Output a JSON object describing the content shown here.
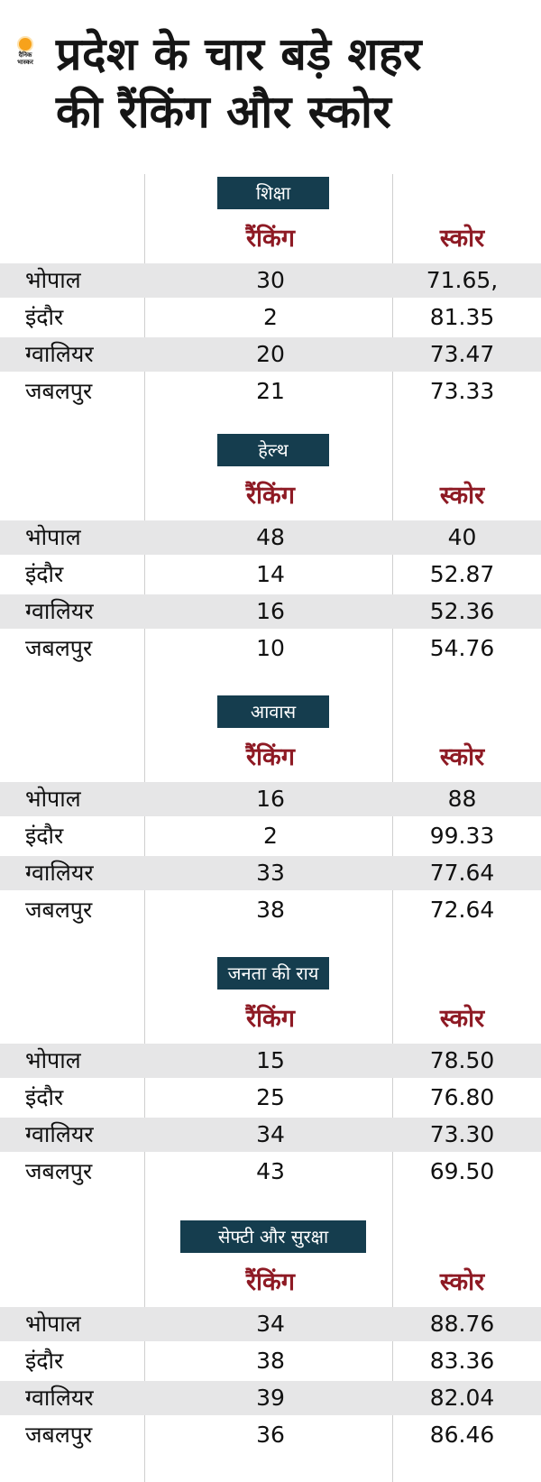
{
  "brand": {
    "logo_text_line1": "दैनिक",
    "logo_text_line2": "भास्कर"
  },
  "title": {
    "line1": "प्रदेश के चार बड़े शहर",
    "line2": "की रैंकिंग और स्कोर"
  },
  "columns": {
    "rank": "रैंकिंग",
    "score": "स्कोर"
  },
  "sections": [
    {
      "label": "शिक्षा",
      "rows": [
        {
          "city": "भोपाल",
          "rank": "30",
          "score": "71.65,"
        },
        {
          "city": "इंदौर",
          "rank": "2",
          "score": "81.35"
        },
        {
          "city": "ग्वालियर",
          "rank": "20",
          "score": "73.47"
        },
        {
          "city": "जबलपुर",
          "rank": "21",
          "score": "73.33"
        }
      ]
    },
    {
      "label": "हेल्थ",
      "rows": [
        {
          "city": "भोपाल",
          "rank": "48",
          "score": "40"
        },
        {
          "city": "इंदौर",
          "rank": "14",
          "score": "52.87"
        },
        {
          "city": "ग्वालियर",
          "rank": "16",
          "score": "52.36"
        },
        {
          "city": "जबलपुर",
          "rank": "10",
          "score": "54.76"
        }
      ]
    },
    {
      "label": "आवास",
      "rows": [
        {
          "city": "भोपाल",
          "rank": "16",
          "score": "88"
        },
        {
          "city": "इंदौर",
          "rank": "2",
          "score": "99.33"
        },
        {
          "city": "ग्वालियर",
          "rank": "33",
          "score": "77.64"
        },
        {
          "city": "जबलपुर",
          "rank": "38",
          "score": "72.64"
        }
      ]
    },
    {
      "label": "जनता की राय",
      "rows": [
        {
          "city": "भोपाल",
          "rank": "15",
          "score": "78.50"
        },
        {
          "city": "इंदौर",
          "rank": "25",
          "score": "76.80"
        },
        {
          "city": "ग्वालियर",
          "rank": "34",
          "score": "73.30"
        },
        {
          "city": "जबलपुर",
          "rank": "43",
          "score": "69.50"
        }
      ]
    },
    {
      "label": "सेफ्टी और सुरक्षा",
      "rows": [
        {
          "city": "भोपाल",
          "rank": "34",
          "score": "88.76"
        },
        {
          "city": "इंदौर",
          "rank": "38",
          "score": "83.36"
        },
        {
          "city": "ग्वालियर",
          "rank": "39",
          "score": "82.04"
        },
        {
          "city": "जबलपुर",
          "rank": "36",
          "score": "86.46"
        }
      ]
    }
  ]
}
